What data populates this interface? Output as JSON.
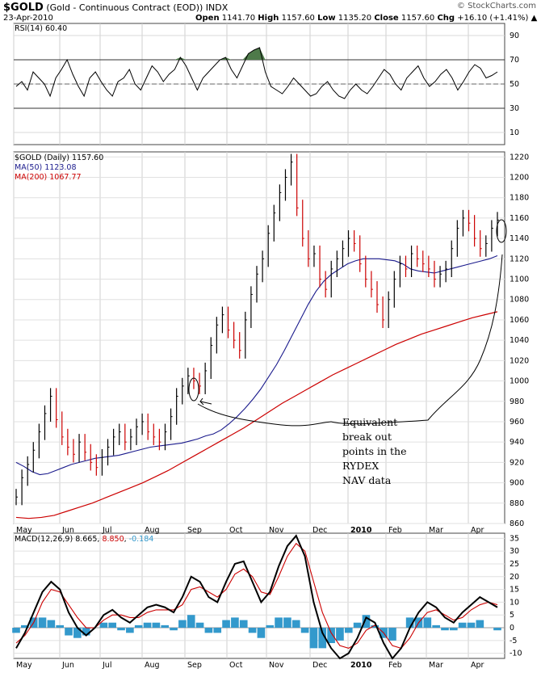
{
  "header": {
    "symbol": "$GOLD",
    "description": "(Gold - Continuous Contract (EOD))",
    "exchange": "INDX",
    "date": "23-Apr-2010",
    "open_label": "Open",
    "open": "1141.70",
    "high_label": "High",
    "high": "1157.60",
    "low_label": "Low",
    "low": "1135.20",
    "close_label": "Close",
    "close": "1157.60",
    "chg_label": "Chg",
    "chg": "+16.10 (+1.41%)",
    "chg_arrow": "▲",
    "watermark": "© StockCharts.com"
  },
  "annotation": {
    "lines": [
      "Equivalent",
      "break out",
      "points in the",
      "RYDEX",
      "NAV data"
    ]
  },
  "chart_data": [
    {
      "type": "line",
      "title": "RSI(14) 60.40",
      "indicator": "RSI(14)",
      "last_value": 60.4,
      "ylim": [
        0,
        100
      ],
      "yticks": [
        10,
        30,
        50,
        70,
        90
      ],
      "reference_lines": [
        30,
        50,
        70
      ],
      "overbought_fill_color": "#4e7a4a",
      "series": [
        {
          "values": [
            48,
            52,
            45,
            60,
            55,
            50,
            40,
            55,
            62,
            70,
            58,
            48,
            40,
            55,
            60,
            52,
            45,
            40,
            52,
            55,
            62,
            50,
            45,
            55,
            65,
            60,
            52,
            58,
            62,
            72,
            65,
            55,
            45,
            55,
            60,
            65,
            70,
            72,
            62,
            55,
            65,
            75,
            78,
            80,
            60,
            48,
            45,
            42,
            48,
            55,
            50,
            45,
            40,
            42,
            48,
            52,
            45,
            40,
            38,
            45,
            50,
            45,
            42,
            48,
            55,
            62,
            58,
            50,
            45,
            55,
            60,
            65,
            55,
            48,
            52,
            58,
            62,
            55,
            45,
            52,
            60,
            66,
            63,
            55,
            57,
            60
          ],
          "color": "#000000"
        }
      ]
    },
    {
      "type": "bar",
      "title": "$GOLD (Daily) 1157.60",
      "ylim": [
        860,
        1225
      ],
      "yticks": [
        860,
        880,
        900,
        920,
        940,
        960,
        980,
        1000,
        1020,
        1040,
        1060,
        1080,
        1100,
        1120,
        1140,
        1160,
        1180,
        1200,
        1220
      ],
      "x_labels": [
        "May",
        "Jun",
        "Jul",
        "Aug",
        "Sep",
        "Oct",
        "Nov",
        "Dec",
        "2010",
        "Feb",
        "Mar",
        "Apr"
      ],
      "legend": [
        {
          "name": "$GOLD (Daily) 1157.60",
          "color": "#000000"
        },
        {
          "name": "MA(50) 1123.08",
          "color": "#1a1a8c"
        },
        {
          "name": "MA(200) 1067.77",
          "color": "#cc0000"
        }
      ],
      "series": [
        {
          "name": "$GOLD",
          "color": "#000000",
          "down_color": "#cc0000",
          "values": [
            886,
            905,
            918,
            932,
            950,
            968,
            985,
            962,
            945,
            935,
            928,
            940,
            930,
            920,
            915,
            925,
            935,
            945,
            950,
            940,
            945,
            955,
            960,
            950,
            945,
            940,
            950,
            965,
            985,
            995,
            1005,
            1000,
            995,
            1010,
            1035,
            1055,
            1065,
            1050,
            1040,
            1030,
            1060,
            1085,
            1105,
            1120,
            1145,
            1165,
            1185,
            1200,
            1215,
            1170,
            1140,
            1120,
            1125,
            1100,
            1090,
            1110,
            1120,
            1130,
            1140,
            1135,
            1115,
            1100,
            1090,
            1075,
            1060,
            1080,
            1100,
            1115,
            1110,
            1125,
            1120,
            1115,
            1110,
            1100,
            1105,
            1110,
            1130,
            1150,
            1160,
            1155,
            1140,
            1130,
            1135,
            1150,
            1158
          ]
        },
        {
          "name": "MA(50) 1123.08",
          "color": "#1a1a8c",
          "values": [
            920,
            916,
            911,
            908,
            909,
            912,
            915,
            918,
            920,
            922,
            924,
            925,
            926,
            927,
            929,
            931,
            933,
            935,
            936,
            937,
            938,
            939,
            941,
            943,
            946,
            948,
            952,
            958,
            965,
            973,
            982,
            992,
            1004,
            1016,
            1030,
            1045,
            1060,
            1075,
            1088,
            1098,
            1105,
            1110,
            1115,
            1118,
            1120,
            1120,
            1120,
            1119,
            1118,
            1115,
            1110,
            1108,
            1107,
            1106,
            1108,
            1110,
            1112,
            1114,
            1116,
            1118,
            1120,
            1123
          ]
        },
        {
          "name": "MA(200) 1067.77",
          "color": "#cc0000",
          "values": [
            866,
            865,
            866,
            868,
            872,
            876,
            880,
            885,
            890,
            895,
            900,
            906,
            912,
            919,
            926,
            933,
            940,
            947,
            954,
            962,
            970,
            978,
            985,
            992,
            999,
            1006,
            1012,
            1018,
            1024,
            1030,
            1036,
            1041,
            1046,
            1050,
            1054,
            1058,
            1062,
            1065,
            1068
          ]
        }
      ],
      "annotation_overlay": "RYDEX NAV data curve"
    },
    {
      "type": "line",
      "title": "MACD(12,26,9) 8.665, 8.850, -0.184",
      "macd": 8.665,
      "signal": 8.85,
      "histogram": -0.184,
      "ylim": [
        -12,
        37
      ],
      "yticks": [
        -10,
        -5,
        0,
        5,
        10,
        15,
        20,
        25,
        30,
        35
      ],
      "x_labels": [
        "May",
        "Jun",
        "Jul",
        "Aug",
        "Sep",
        "Oct",
        "Nov",
        "Dec",
        "2010",
        "Feb",
        "Mar",
        "Apr"
      ],
      "legend": [
        {
          "name": "MACD(12,26,9)",
          "color": "#000000"
        },
        {
          "name": "8.665",
          "color": "#000000"
        },
        {
          "name": "8.850",
          "color": "#cc0000"
        },
        {
          "name": "-0.184",
          "color": "#3399cc"
        }
      ],
      "series": [
        {
          "name": "MACD",
          "color": "#000000",
          "values": [
            -8,
            -2,
            6,
            14,
            18,
            15,
            6,
            0,
            -3,
            0,
            5,
            7,
            4,
            2,
            5,
            8,
            9,
            8,
            6,
            12,
            20,
            18,
            12,
            10,
            18,
            25,
            26,
            18,
            10,
            14,
            24,
            32,
            36,
            28,
            10,
            -2,
            -8,
            -12,
            -10,
            -4,
            4,
            2,
            -6,
            -12,
            -8,
            0,
            6,
            10,
            8,
            4,
            2,
            6,
            9,
            12,
            10,
            8
          ]
        },
        {
          "name": "Signal",
          "color": "#cc0000",
          "values": [
            -6,
            -3,
            2,
            10,
            15,
            14,
            9,
            4,
            0,
            0,
            3,
            5,
            5,
            4,
            4,
            6,
            7,
            7,
            7,
            9,
            15,
            16,
            14,
            12,
            15,
            21,
            23,
            20,
            14,
            13,
            20,
            28,
            33,
            30,
            18,
            6,
            -2,
            -7,
            -8,
            -6,
            -1,
            1,
            -2,
            -7,
            -8,
            -4,
            2,
            6,
            7,
            5,
            3,
            4,
            7,
            9,
            10,
            9
          ]
        },
        {
          "name": "Histogram",
          "color": "#3399cc",
          "values": [
            -2,
            1,
            4,
            4,
            3,
            1,
            -3,
            -4,
            -3,
            0,
            2,
            2,
            -1,
            -2,
            1,
            2,
            2,
            1,
            -1,
            3,
            5,
            2,
            -2,
            -2,
            3,
            4,
            3,
            -2,
            -4,
            1,
            4,
            4,
            3,
            -2,
            -8,
            -8,
            -6,
            -5,
            -2,
            2,
            5,
            1,
            -4,
            -5,
            0,
            4,
            4,
            4,
            1,
            -1,
            -1,
            2,
            2,
            3,
            0,
            -1
          ]
        }
      ]
    }
  ]
}
